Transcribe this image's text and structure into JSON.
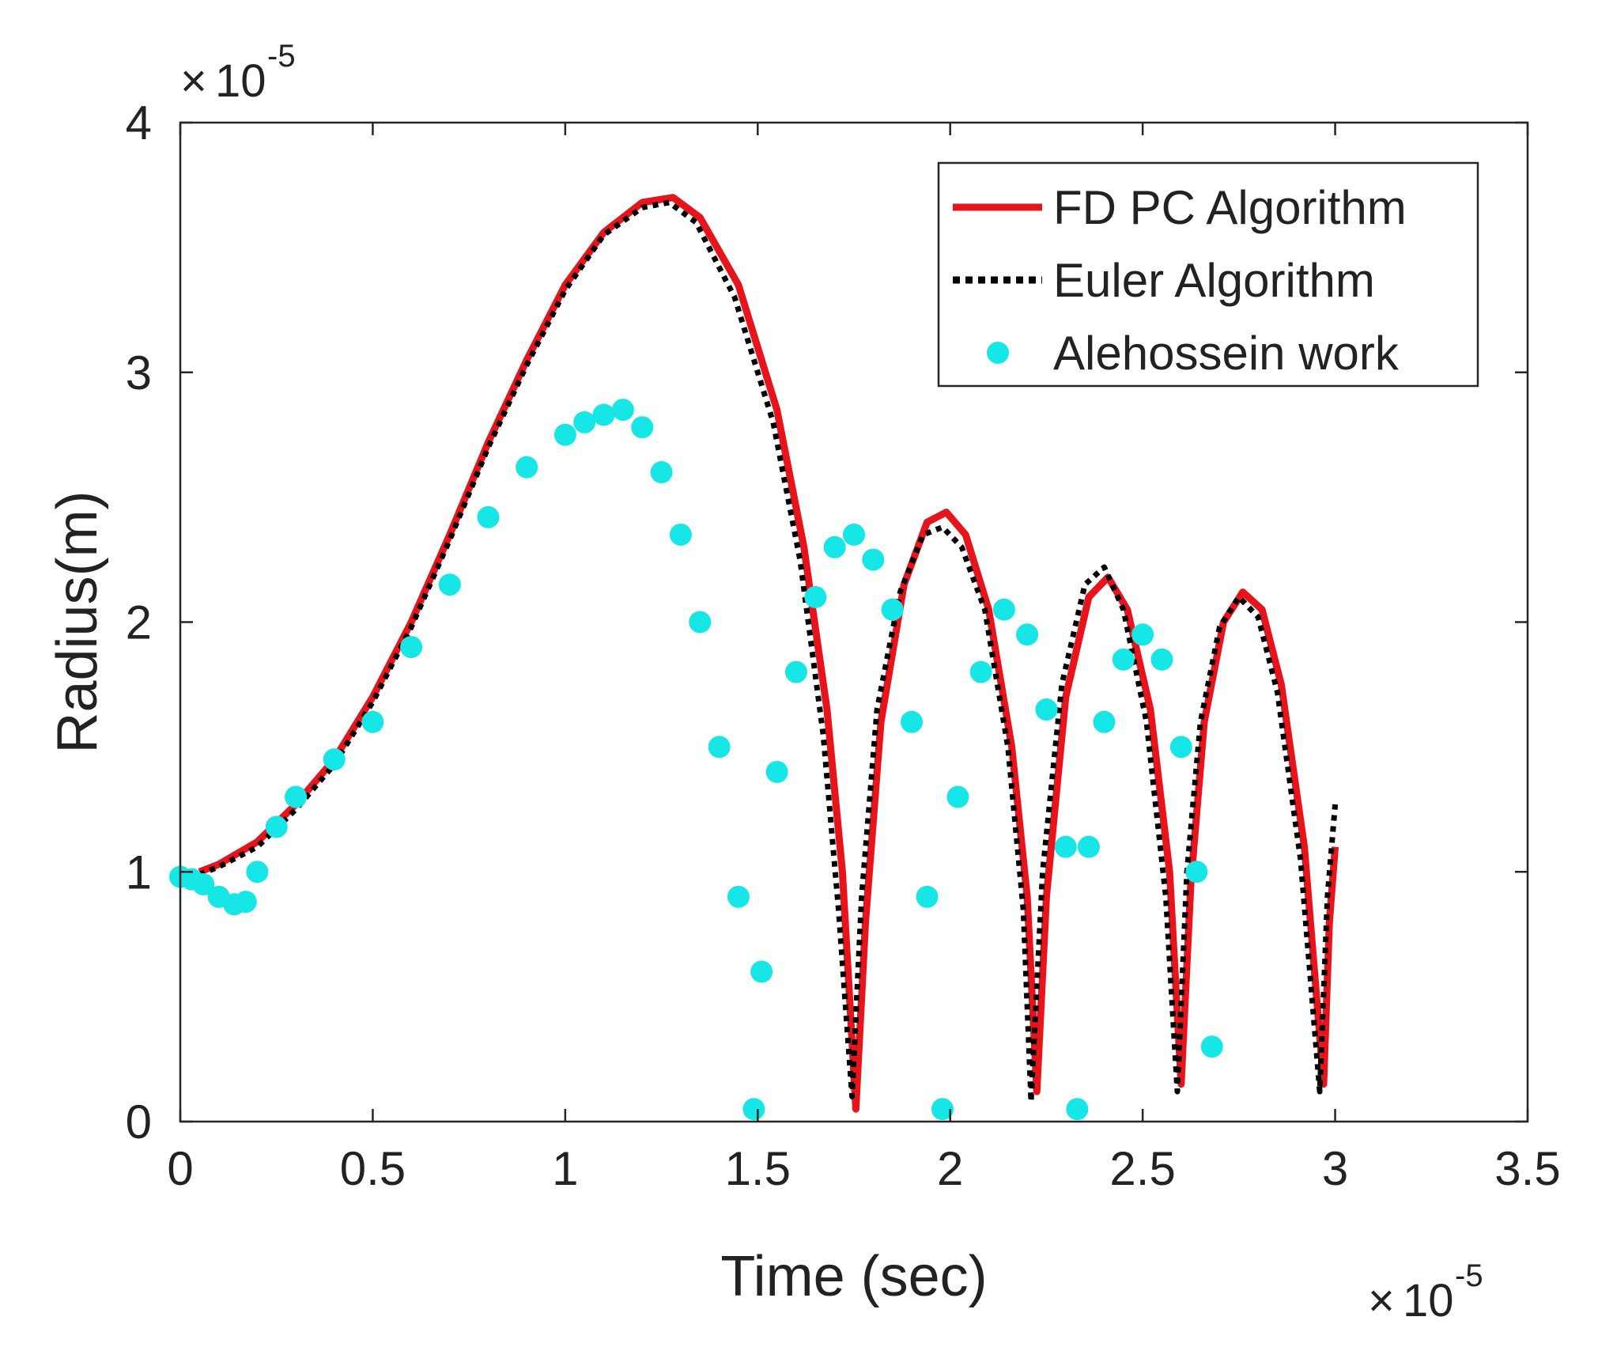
{
  "chart_data": {
    "type": "line",
    "title": "",
    "xlabel": "Time (sec)",
    "ylabel": "Radius(m)",
    "xlim": [
      0,
      3.5
    ],
    "ylim": [
      0,
      4
    ],
    "x_ticks": [
      0,
      0.5,
      1,
      1.5,
      2,
      2.5,
      3,
      3.5
    ],
    "y_ticks": [
      0,
      1,
      2,
      3,
      4
    ],
    "x_tick_labels": [
      "0",
      "0.5",
      "1",
      "1.5",
      "2",
      "2.5",
      "3",
      "3.5"
    ],
    "y_tick_labels": [
      "0",
      "1",
      "2",
      "3",
      "4"
    ],
    "x_multiplier": {
      "base": "10",
      "exponent": "-5"
    },
    "y_multiplier": {
      "base": "10",
      "exponent": "-5"
    },
    "times_sign": "×",
    "grid": false,
    "legend_position": "top-right",
    "series": [
      {
        "name": "FD PC Algorithm",
        "style": "solid",
        "color": "#e8141b",
        "x": [
          0.05,
          0.1,
          0.2,
          0.3,
          0.4,
          0.5,
          0.6,
          0.7,
          0.8,
          0.9,
          1.0,
          1.1,
          1.2,
          1.28,
          1.35,
          1.45,
          1.55,
          1.62,
          1.68,
          1.72,
          1.755,
          1.78,
          1.82,
          1.88,
          1.94,
          1.99,
          2.04,
          2.1,
          2.16,
          2.2,
          2.225,
          2.25,
          2.3,
          2.36,
          2.41,
          2.46,
          2.52,
          2.57,
          2.6,
          2.625,
          2.66,
          2.71,
          2.76,
          2.81,
          2.86,
          2.92,
          2.97,
          2.985,
          3.0
        ],
        "values": [
          1.0,
          1.03,
          1.12,
          1.27,
          1.45,
          1.7,
          2.0,
          2.35,
          2.72,
          3.05,
          3.35,
          3.56,
          3.68,
          3.7,
          3.62,
          3.35,
          2.85,
          2.3,
          1.65,
          1.0,
          0.05,
          0.8,
          1.6,
          2.15,
          2.4,
          2.44,
          2.35,
          2.05,
          1.5,
          0.9,
          0.12,
          0.9,
          1.7,
          2.1,
          2.18,
          2.05,
          1.65,
          1.0,
          0.15,
          0.95,
          1.6,
          2.0,
          2.12,
          2.05,
          1.75,
          1.1,
          0.15,
          0.8,
          1.1
        ]
      },
      {
        "name": "Euler Algorithm",
        "style": "dotted",
        "color": "#000000",
        "x": [
          0.05,
          0.1,
          0.2,
          0.3,
          0.4,
          0.5,
          0.6,
          0.7,
          0.8,
          0.9,
          1.0,
          1.1,
          1.2,
          1.27,
          1.34,
          1.44,
          1.54,
          1.61,
          1.67,
          1.71,
          1.745,
          1.77,
          1.81,
          1.87,
          1.93,
          1.98,
          2.03,
          2.09,
          2.15,
          2.19,
          2.21,
          2.24,
          2.29,
          2.35,
          2.4,
          2.45,
          2.51,
          2.56,
          2.59,
          2.615,
          2.65,
          2.7,
          2.75,
          2.8,
          2.85,
          2.91,
          2.96,
          2.98,
          3.0
        ],
        "values": [
          0.99,
          1.02,
          1.1,
          1.25,
          1.43,
          1.68,
          1.98,
          2.33,
          2.7,
          3.03,
          3.33,
          3.55,
          3.66,
          3.68,
          3.6,
          3.3,
          2.8,
          2.25,
          1.55,
          0.85,
          0.1,
          0.9,
          1.65,
          2.12,
          2.35,
          2.38,
          2.3,
          2.05,
          1.5,
          0.85,
          0.08,
          1.0,
          1.75,
          2.15,
          2.22,
          2.05,
          1.6,
          0.9,
          0.12,
          1.0,
          1.6,
          1.98,
          2.1,
          2.02,
          1.72,
          1.05,
          0.12,
          0.9,
          1.27
        ]
      },
      {
        "name": "Alehossein work",
        "style": "markers",
        "color": "#17e6e6",
        "x": [
          0.0,
          0.03,
          0.06,
          0.1,
          0.14,
          0.17,
          0.2,
          0.25,
          0.3,
          0.4,
          0.5,
          0.6,
          0.7,
          0.8,
          0.9,
          1.0,
          1.05,
          1.1,
          1.15,
          1.2,
          1.25,
          1.3,
          1.35,
          1.4,
          1.45,
          1.49,
          1.51,
          1.55,
          1.6,
          1.65,
          1.7,
          1.75,
          1.8,
          1.85,
          1.9,
          1.94,
          1.98,
          2.02,
          2.08,
          2.14,
          2.2,
          2.25,
          2.3,
          2.33,
          2.36,
          2.4,
          2.45,
          2.5,
          2.55,
          2.6,
          2.64,
          2.68
        ],
        "values": [
          0.98,
          0.97,
          0.95,
          0.9,
          0.87,
          0.88,
          1.0,
          1.18,
          1.3,
          1.45,
          1.6,
          1.9,
          2.15,
          2.42,
          2.62,
          2.75,
          2.8,
          2.83,
          2.85,
          2.78,
          2.6,
          2.35,
          2.0,
          1.5,
          0.9,
          0.05,
          0.6,
          1.4,
          1.8,
          2.1,
          2.3,
          2.35,
          2.25,
          2.05,
          1.6,
          0.9,
          0.05,
          1.3,
          1.8,
          2.05,
          1.95,
          1.65,
          1.1,
          0.05,
          1.1,
          1.6,
          1.85,
          1.95,
          1.85,
          1.5,
          1.0,
          0.3
        ]
      }
    ]
  }
}
